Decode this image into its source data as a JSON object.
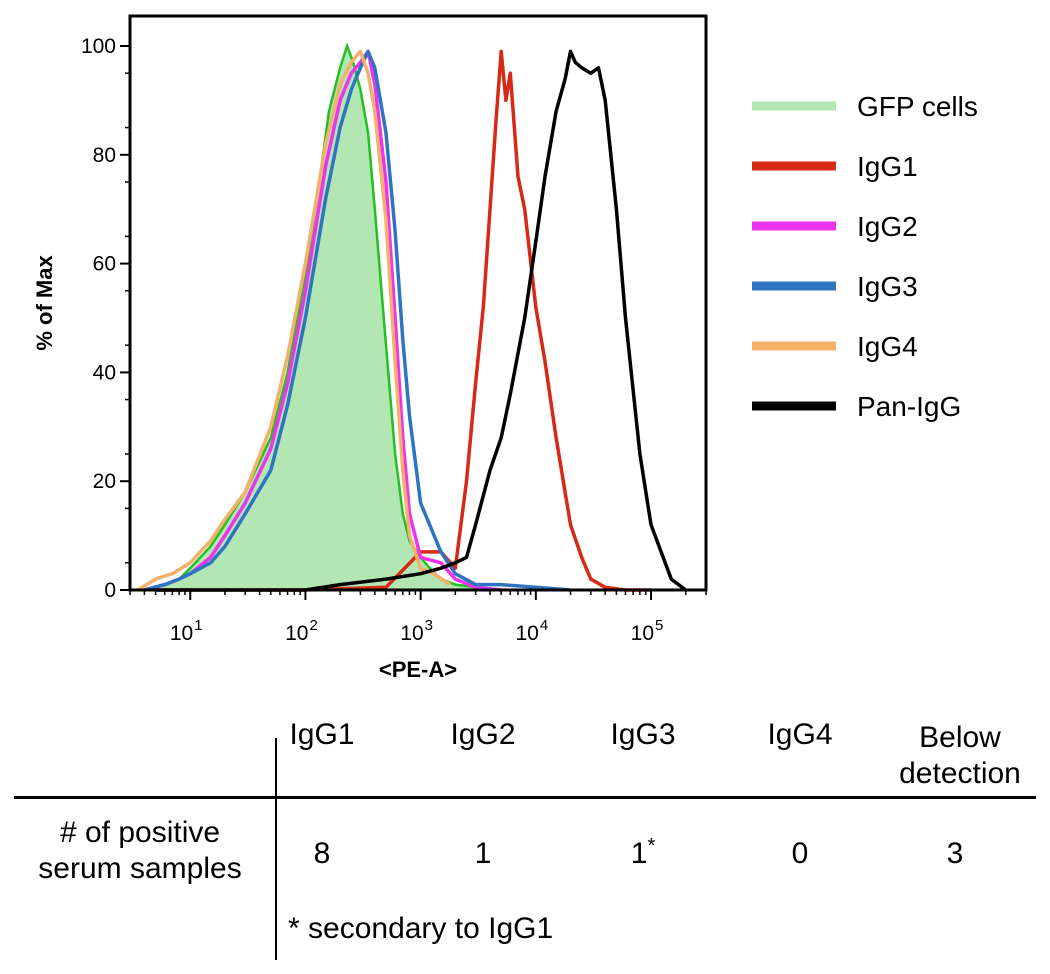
{
  "chart_data": {
    "type": "area",
    "xlabel": "<PE-A>",
    "ylabel": "% of Max",
    "xscale": "log",
    "xlim": [
      3,
      300000
    ],
    "ylim": [
      0,
      100
    ],
    "x_ticks": [
      10,
      100,
      1000,
      10000,
      100000
    ],
    "x_tick_labels": [
      {
        "base": "10",
        "exp": "1"
      },
      {
        "base": "10",
        "exp": "2"
      },
      {
        "base": "10",
        "exp": "3"
      },
      {
        "base": "10",
        "exp": "4"
      },
      {
        "base": "10",
        "exp": "5"
      }
    ],
    "y_ticks": [
      0,
      20,
      40,
      60,
      80,
      100
    ],
    "grid": false,
    "legend_position": "right",
    "series": [
      {
        "name": "GFP cells",
        "color": "#b2e6b2",
        "fill": true,
        "x": [
          4,
          6,
          8,
          10,
          15,
          20,
          30,
          50,
          70,
          100,
          130,
          160,
          200,
          230,
          260,
          300,
          350,
          400,
          500,
          600,
          700,
          800,
          1000,
          1200,
          1500,
          2000,
          3000,
          5000
        ],
        "y": [
          0,
          1,
          2,
          4,
          8,
          12,
          18,
          28,
          40,
          58,
          74,
          88,
          96,
          100,
          97,
          92,
          84,
          70,
          45,
          25,
          14,
          9,
          6,
          4,
          2,
          1,
          0.5,
          0
        ]
      },
      {
        "name": "IgG1",
        "color": "#d62a14",
        "fill": false,
        "x": [
          5,
          100,
          500,
          1000,
          1500,
          2000,
          2500,
          3000,
          3500,
          4000,
          4500,
          5000,
          5500,
          6000,
          7000,
          8000,
          10000,
          12000,
          15000,
          20000,
          25000,
          30000,
          40000,
          60000,
          100000
        ],
        "y": [
          0,
          0,
          0.5,
          7,
          7,
          4,
          20,
          38,
          52,
          70,
          86,
          99,
          90,
          95,
          76,
          70,
          52,
          42,
          28,
          12,
          6,
          2,
          0.5,
          0,
          0
        ]
      },
      {
        "name": "IgG2",
        "color": "#ee33ee",
        "fill": false,
        "x": [
          4,
          6,
          8,
          10,
          15,
          20,
          30,
          50,
          70,
          100,
          150,
          200,
          250,
          300,
          350,
          400,
          500,
          600,
          700,
          800,
          1000,
          1500,
          2000,
          3000,
          5000
        ],
        "y": [
          0,
          1,
          2,
          3,
          6,
          10,
          16,
          26,
          38,
          55,
          78,
          90,
          95,
          97,
          99,
          93,
          75,
          50,
          28,
          14,
          6,
          5,
          2,
          0.5,
          0
        ]
      },
      {
        "name": "IgG3",
        "color": "#2f74c0",
        "fill": false,
        "x": [
          4,
          6,
          8,
          10,
          15,
          20,
          30,
          50,
          70,
          100,
          150,
          200,
          250,
          300,
          350,
          400,
          500,
          600,
          700,
          800,
          1000,
          1500,
          2000,
          3000,
          5000,
          10000,
          20000
        ],
        "y": [
          0,
          1,
          2,
          3,
          5,
          8,
          14,
          22,
          34,
          50,
          72,
          85,
          92,
          96,
          99,
          96,
          84,
          66,
          46,
          32,
          16,
          7,
          3,
          1,
          1,
          0.5,
          0
        ]
      },
      {
        "name": "IgG4",
        "color": "#f5b06a",
        "fill": false,
        "x": [
          3.5,
          5,
          7,
          10,
          15,
          20,
          30,
          50,
          70,
          100,
          150,
          200,
          250,
          300,
          350,
          400,
          500,
          600,
          700,
          800,
          1000,
          1300,
          1800
        ],
        "y": [
          0,
          2,
          3,
          5,
          9,
          13,
          18,
          30,
          43,
          60,
          82,
          93,
          97,
          99,
          95,
          88,
          68,
          42,
          22,
          10,
          4,
          3,
          1
        ]
      },
      {
        "name": "Pan-IgG",
        "color": "#000000",
        "fill": false,
        "x": [
          5,
          100,
          200,
          500,
          1000,
          1500,
          2000,
          2500,
          3000,
          4000,
          5000,
          6000,
          8000,
          10000,
          12000,
          15000,
          18000,
          20000,
          22000,
          25000,
          30000,
          35000,
          40000,
          50000,
          60000,
          80000,
          100000,
          150000,
          200000
        ],
        "y": [
          0,
          0,
          1,
          2,
          3,
          4,
          5,
          6,
          12,
          22,
          28,
          36,
          50,
          64,
          76,
          88,
          94,
          99,
          97,
          96,
          95,
          96,
          90,
          70,
          50,
          25,
          12,
          2,
          0
        ]
      }
    ]
  },
  "table": {
    "headers": [
      "IgG1",
      "IgG2",
      "IgG3",
      "IgG4",
      "Below detection"
    ],
    "header_below_line1": "Below",
    "header_below_line2": "detection",
    "row_label_line1": "# of positive",
    "row_label_line2": "serum samples",
    "values": [
      "8",
      "1",
      "1",
      "0",
      "3"
    ],
    "igg3_marker": "*",
    "footnote": "* secondary to IgG1"
  }
}
